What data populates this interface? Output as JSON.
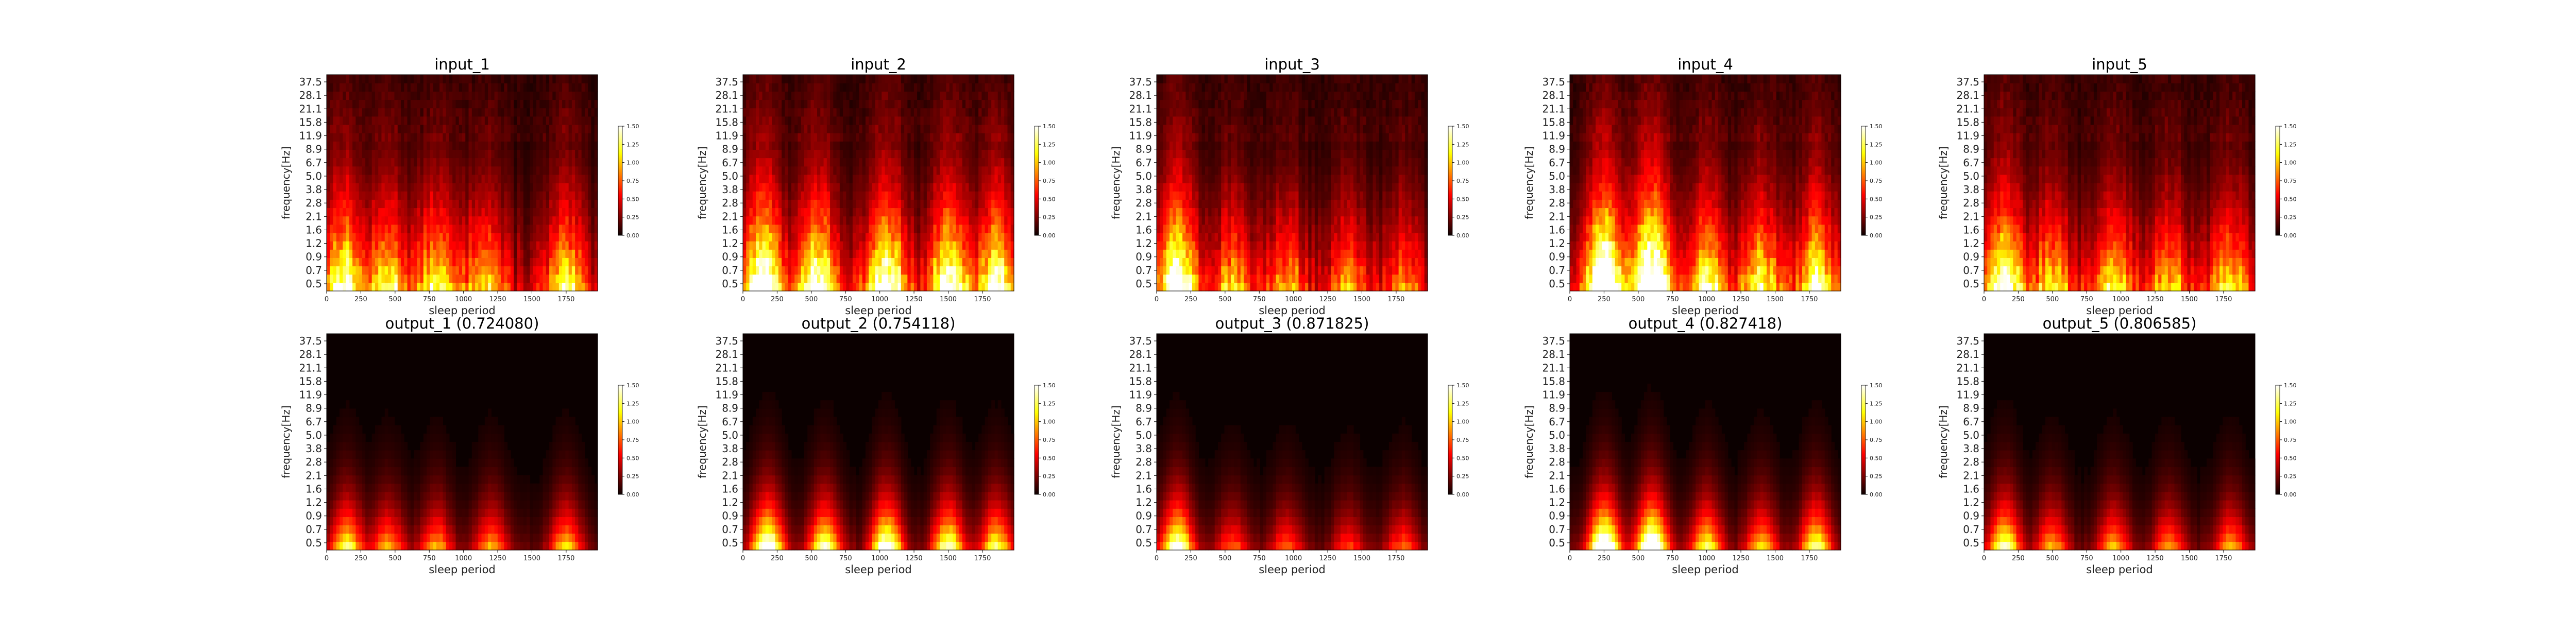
{
  "chart_data": [
    {
      "type": "heatmap",
      "title": "input_1",
      "xlabel": "sleep period",
      "ylabel": "frequency[Hz]",
      "x_ticks": [
        "0",
        "250",
        "500",
        "750",
        "1000",
        "1250",
        "1500",
        "1750"
      ],
      "y_ticks": [
        "0.5",
        "0.7",
        "0.9",
        "1.2",
        "1.6",
        "2.1",
        "2.8",
        "3.8",
        "5.0",
        "6.7",
        "8.9",
        "11.9",
        "15.8",
        "21.1",
        "28.1",
        "37.5"
      ],
      "colorbar_ticks": [
        "0.00",
        "0.25",
        "0.50",
        "0.75",
        "1.00",
        "1.25",
        "1.50"
      ],
      "colorbar_range": [
        0,
        1.5
      ],
      "hot_regions": [
        {
          "x": 120,
          "low_freq_intensity": 1.2
        },
        {
          "x": 450,
          "low_freq_intensity": 0.9
        },
        {
          "x": 800,
          "low_freq_intensity": 0.9
        },
        {
          "x": 1150,
          "low_freq_intensity": 0.8
        },
        {
          "x": 1750,
          "low_freq_intensity": 0.8
        }
      ]
    },
    {
      "type": "heatmap",
      "title": "input_2",
      "xlabel": "sleep period",
      "ylabel": "frequency[Hz]",
      "x_ticks": [
        "0",
        "250",
        "500",
        "750",
        "1000",
        "1250",
        "1500",
        "1750"
      ],
      "y_ticks": [
        "0.5",
        "0.7",
        "0.9",
        "1.2",
        "1.6",
        "2.1",
        "2.8",
        "3.8",
        "5.0",
        "6.7",
        "8.9",
        "11.9",
        "15.8",
        "21.1",
        "28.1",
        "37.5"
      ],
      "colorbar_ticks": [
        "0.00",
        "0.25",
        "0.50",
        "0.75",
        "1.00",
        "1.25",
        "1.50"
      ],
      "colorbar_range": [
        0,
        1.5
      ],
      "hot_regions": [
        {
          "x": 150,
          "low_freq_intensity": 1.5
        },
        {
          "x": 550,
          "low_freq_intensity": 1.3
        },
        {
          "x": 1050,
          "low_freq_intensity": 1.4
        },
        {
          "x": 1500,
          "low_freq_intensity": 1.3
        },
        {
          "x": 1850,
          "low_freq_intensity": 1.2
        }
      ]
    },
    {
      "type": "heatmap",
      "title": "input_3",
      "xlabel": "sleep period",
      "ylabel": "frequency[Hz]",
      "x_ticks": [
        "0",
        "250",
        "500",
        "750",
        "1000",
        "1250",
        "1500",
        "1750"
      ],
      "y_ticks": [
        "0.5",
        "0.7",
        "0.9",
        "1.2",
        "1.6",
        "2.1",
        "2.8",
        "3.8",
        "5.0",
        "6.7",
        "8.9",
        "11.9",
        "15.8",
        "21.1",
        "28.1",
        "37.5"
      ],
      "colorbar_ticks": [
        "0.00",
        "0.25",
        "0.50",
        "0.75",
        "1.00",
        "1.25",
        "1.50"
      ],
      "colorbar_range": [
        0,
        1.5
      ],
      "hot_regions": [
        {
          "x": 150,
          "low_freq_intensity": 1.5
        },
        {
          "x": 550,
          "low_freq_intensity": 0.6
        },
        {
          "x": 950,
          "low_freq_intensity": 0.6
        },
        {
          "x": 1400,
          "low_freq_intensity": 0.5
        },
        {
          "x": 1800,
          "low_freq_intensity": 0.5
        }
      ]
    },
    {
      "type": "heatmap",
      "title": "input_4",
      "xlabel": "sleep period",
      "ylabel": "frequency[Hz]",
      "x_ticks": [
        "0",
        "250",
        "500",
        "750",
        "1000",
        "1250",
        "1500",
        "1750"
      ],
      "y_ticks": [
        "0.5",
        "0.7",
        "0.9",
        "1.2",
        "1.6",
        "2.1",
        "2.8",
        "3.8",
        "5.0",
        "6.7",
        "8.9",
        "11.9",
        "15.8",
        "21.1",
        "28.1",
        "37.5"
      ],
      "colorbar_ticks": [
        "0.00",
        "0.25",
        "0.50",
        "0.75",
        "1.00",
        "1.25",
        "1.50"
      ],
      "colorbar_range": [
        0,
        1.5
      ],
      "hot_regions": [
        {
          "x": 250,
          "low_freq_intensity": 1.8
        },
        {
          "x": 600,
          "low_freq_intensity": 1.8
        },
        {
          "x": 1000,
          "low_freq_intensity": 1.0
        },
        {
          "x": 1400,
          "low_freq_intensity": 0.9
        },
        {
          "x": 1800,
          "low_freq_intensity": 1.1
        }
      ]
    },
    {
      "type": "heatmap",
      "title": "input_5",
      "xlabel": "sleep period",
      "ylabel": "frequency[Hz]",
      "x_ticks": [
        "0",
        "250",
        "500",
        "750",
        "1000",
        "1250",
        "1500",
        "1750"
      ],
      "y_ticks": [
        "0.5",
        "0.7",
        "0.9",
        "1.2",
        "1.6",
        "2.1",
        "2.8",
        "3.8",
        "5.0",
        "6.7",
        "8.9",
        "11.9",
        "15.8",
        "21.1",
        "28.1",
        "37.5"
      ],
      "colorbar_ticks": [
        "0.00",
        "0.25",
        "0.50",
        "0.75",
        "1.00",
        "1.25",
        "1.50"
      ],
      "colorbar_range": [
        0,
        1.5
      ],
      "hot_regions": [
        {
          "x": 150,
          "low_freq_intensity": 1.3
        },
        {
          "x": 500,
          "low_freq_intensity": 0.8
        },
        {
          "x": 950,
          "low_freq_intensity": 0.8
        },
        {
          "x": 1350,
          "low_freq_intensity": 0.7
        },
        {
          "x": 1800,
          "low_freq_intensity": 0.8
        }
      ]
    },
    {
      "type": "heatmap",
      "title": "output_1 (0.724080)",
      "xlabel": "sleep period",
      "ylabel": "frequency[Hz]",
      "x_ticks": [
        "0",
        "250",
        "500",
        "750",
        "1000",
        "1250",
        "1500",
        "1750"
      ],
      "y_ticks": [
        "0.5",
        "0.7",
        "0.9",
        "1.2",
        "1.6",
        "2.1",
        "2.8",
        "3.8",
        "5.0",
        "6.7",
        "8.9",
        "11.9",
        "15.8",
        "21.1",
        "28.1",
        "37.5"
      ],
      "colorbar_ticks": [
        "0.00",
        "0.25",
        "0.50",
        "0.75",
        "1.00",
        "1.25",
        "1.50"
      ],
      "colorbar_range": [
        0,
        1.5
      ],
      "hot_regions": [
        {
          "x": 150,
          "low_freq_intensity": 1.1
        },
        {
          "x": 450,
          "low_freq_intensity": 0.8
        },
        {
          "x": 800,
          "low_freq_intensity": 0.8
        },
        {
          "x": 1200,
          "low_freq_intensity": 0.8
        },
        {
          "x": 1750,
          "low_freq_intensity": 0.9
        }
      ]
    },
    {
      "type": "heatmap",
      "title": "output_2 (0.754118)",
      "xlabel": "sleep period",
      "ylabel": "frequency[Hz]",
      "x_ticks": [
        "0",
        "250",
        "500",
        "750",
        "1000",
        "1250",
        "1500",
        "1750"
      ],
      "y_ticks": [
        "0.5",
        "0.7",
        "0.9",
        "1.2",
        "1.6",
        "2.1",
        "2.8",
        "3.8",
        "5.0",
        "6.7",
        "8.9",
        "11.9",
        "15.8",
        "21.1",
        "28.1",
        "37.5"
      ],
      "colorbar_ticks": [
        "0.00",
        "0.25",
        "0.50",
        "0.75",
        "1.00",
        "1.25",
        "1.50"
      ],
      "colorbar_range": [
        0,
        1.5
      ],
      "hot_regions": [
        {
          "x": 180,
          "low_freq_intensity": 1.6
        },
        {
          "x": 600,
          "low_freq_intensity": 1.3
        },
        {
          "x": 1050,
          "low_freq_intensity": 1.5
        },
        {
          "x": 1500,
          "low_freq_intensity": 1.3
        },
        {
          "x": 1850,
          "low_freq_intensity": 1.1
        }
      ]
    },
    {
      "type": "heatmap",
      "title": "output_3 (0.871825)",
      "xlabel": "sleep period",
      "ylabel": "frequency[Hz]",
      "x_ticks": [
        "0",
        "250",
        "500",
        "750",
        "1000",
        "1250",
        "1500",
        "1750"
      ],
      "y_ticks": [
        "0.5",
        "0.7",
        "0.9",
        "1.2",
        "1.6",
        "2.1",
        "2.8",
        "3.8",
        "5.0",
        "6.7",
        "8.9",
        "11.9",
        "15.8",
        "21.1",
        "28.1",
        "37.5"
      ],
      "colorbar_ticks": [
        "0.00",
        "0.25",
        "0.50",
        "0.75",
        "1.00",
        "1.25",
        "1.50"
      ],
      "colorbar_range": [
        0,
        1.5
      ],
      "hot_regions": [
        {
          "x": 150,
          "low_freq_intensity": 1.5
        },
        {
          "x": 550,
          "low_freq_intensity": 0.6
        },
        {
          "x": 950,
          "low_freq_intensity": 0.6
        },
        {
          "x": 1400,
          "low_freq_intensity": 0.5
        },
        {
          "x": 1800,
          "low_freq_intensity": 0.6
        }
      ]
    },
    {
      "type": "heatmap",
      "title": "output_4 (0.827418)",
      "xlabel": "sleep period",
      "ylabel": "frequency[Hz]",
      "x_ticks": [
        "0",
        "250",
        "500",
        "750",
        "1000",
        "1250",
        "1500",
        "1750"
      ],
      "y_ticks": [
        "0.5",
        "0.7",
        "0.9",
        "1.2",
        "1.6",
        "2.1",
        "2.8",
        "3.8",
        "5.0",
        "6.7",
        "8.9",
        "11.9",
        "15.8",
        "21.1",
        "28.1",
        "37.5"
      ],
      "colorbar_ticks": [
        "0.00",
        "0.25",
        "0.50",
        "0.75",
        "1.00",
        "1.25",
        "1.50"
      ],
      "colorbar_range": [
        0,
        1.5
      ],
      "hot_regions": [
        {
          "x": 250,
          "low_freq_intensity": 1.8
        },
        {
          "x": 600,
          "low_freq_intensity": 1.8
        },
        {
          "x": 1000,
          "low_freq_intensity": 1.1
        },
        {
          "x": 1400,
          "low_freq_intensity": 0.9
        },
        {
          "x": 1800,
          "low_freq_intensity": 1.2
        }
      ]
    },
    {
      "type": "heatmap",
      "title": "output_5 (0.806585)",
      "xlabel": "sleep period",
      "ylabel": "frequency[Hz]",
      "x_ticks": [
        "0",
        "250",
        "500",
        "750",
        "1000",
        "1250",
        "1500",
        "1750"
      ],
      "y_ticks": [
        "0.5",
        "0.7",
        "0.9",
        "1.2",
        "1.6",
        "2.1",
        "2.8",
        "3.8",
        "5.0",
        "6.7",
        "8.9",
        "11.9",
        "15.8",
        "21.1",
        "28.1",
        "37.5"
      ],
      "colorbar_ticks": [
        "0.00",
        "0.25",
        "0.50",
        "0.75",
        "1.00",
        "1.25",
        "1.50"
      ],
      "colorbar_range": [
        0,
        1.5
      ],
      "hot_regions": [
        {
          "x": 150,
          "low_freq_intensity": 1.3
        },
        {
          "x": 500,
          "low_freq_intensity": 0.8
        },
        {
          "x": 950,
          "low_freq_intensity": 0.8
        },
        {
          "x": 1350,
          "low_freq_intensity": 0.7
        },
        {
          "x": 1800,
          "low_freq_intensity": 0.8
        }
      ]
    }
  ],
  "colormap": "hot"
}
